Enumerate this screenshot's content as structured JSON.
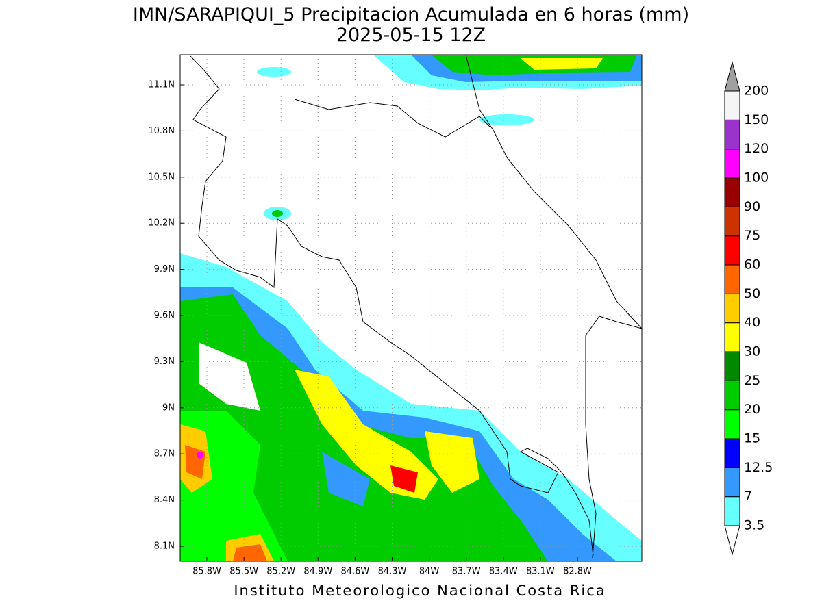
{
  "title": "IMN/SARAPIQUI_5 Precipitacion Acumulada en 6 horas (mm)",
  "subtitle": "2025-05-15 12Z",
  "lat_labels": [
    "11.1N",
    "10.8N",
    "10.5N",
    "10.2N",
    "9.9N",
    "9.6N",
    "9.3N",
    "9N",
    "8.7N",
    "8.4N",
    "8.1N"
  ],
  "lon_labels": [
    "85.8W",
    "85.5W",
    "85.2W",
    "84.9W",
    "84.6W",
    "84.3W",
    "84W",
    "83.7W",
    "83.4W",
    "83.1W",
    "82.8W"
  ],
  "colorbar": {
    "levels": [
      3.5,
      7,
      12.5,
      15,
      20,
      25,
      30,
      40,
      50,
      60,
      75,
      90,
      100,
      120,
      150,
      200
    ],
    "colors": [
      "#ffffff",
      "#66ffff",
      "#3399ff",
      "#0000ff",
      "#00ff00",
      "#00cc00",
      "#008800",
      "#ffff00",
      "#ffcc00",
      "#ff6600",
      "#ff0000",
      "#cc3300",
      "#990000",
      "#ff00ff",
      "#9933cc",
      "#f5f5f5",
      "#a0a0a0"
    ]
  },
  "footer": "Instituto Meteorologico Nacional Costa Rica"
}
